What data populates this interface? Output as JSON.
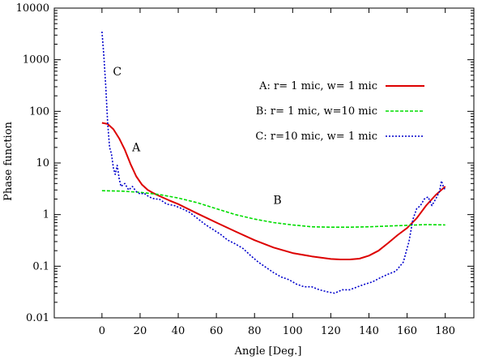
{
  "chart_data": {
    "type": "line",
    "title": "",
    "xlabel": "Angle [Deg.]",
    "ylabel": "Phase function",
    "xlim": [
      -25,
      195
    ],
    "ylim": [
      0.01,
      10000
    ],
    "yscale": "log",
    "grid": false,
    "legend_position": "top-right",
    "x_ticks": [
      0,
      20,
      40,
      60,
      80,
      100,
      120,
      140,
      160,
      180
    ],
    "y_ticks": [
      0.01,
      0.1,
      1,
      10,
      100,
      1000,
      10000
    ],
    "x_tick_labels": [
      "0",
      "20",
      "40",
      "60",
      "80",
      "100",
      "120",
      "140",
      "160",
      "180"
    ],
    "y_tick_labels": [
      "0.01",
      "0.1",
      "1",
      "10",
      "100",
      "1000",
      "10000"
    ],
    "series": [
      {
        "key": "A",
        "name": "A: r= 1 mic, w= 1 mic",
        "color": "#dd0000",
        "style": "solid",
        "x": [
          0,
          3,
          6,
          9,
          12,
          15,
          18,
          21,
          24,
          27,
          30,
          35,
          40,
          50,
          60,
          70,
          80,
          90,
          100,
          110,
          120,
          125,
          130,
          135,
          140,
          145,
          150,
          155,
          160,
          165,
          170,
          175,
          180
        ],
        "y": [
          60,
          57,
          45,
          30,
          18,
          9.5,
          5.5,
          3.8,
          3.0,
          2.6,
          2.3,
          1.9,
          1.6,
          1.05,
          0.7,
          0.47,
          0.32,
          0.23,
          0.18,
          0.155,
          0.138,
          0.135,
          0.135,
          0.14,
          0.16,
          0.2,
          0.28,
          0.4,
          0.55,
          0.85,
          1.5,
          2.4,
          3.5
        ]
      },
      {
        "key": "B",
        "name": "B: r= 1 mic, w=10 mic",
        "color": "#00dd00",
        "style": "dashed",
        "x": [
          0,
          10,
          20,
          30,
          40,
          50,
          60,
          70,
          80,
          90,
          100,
          110,
          120,
          130,
          140,
          150,
          160,
          170,
          180
        ],
        "y": [
          2.9,
          2.85,
          2.7,
          2.45,
          2.1,
          1.7,
          1.3,
          1.0,
          0.82,
          0.7,
          0.63,
          0.58,
          0.57,
          0.57,
          0.58,
          0.6,
          0.62,
          0.64,
          0.63
        ]
      },
      {
        "key": "C",
        "name": "C: r=10 mic, w= 1 mic",
        "color": "#0000cc",
        "style": "dotted",
        "x": [
          0,
          1,
          2,
          3,
          4,
          5,
          6,
          7,
          8,
          9,
          10,
          12,
          14,
          16,
          18,
          20,
          22,
          24,
          26,
          28,
          30,
          34,
          38,
          42,
          46,
          50,
          54,
          58,
          62,
          66,
          70,
          74,
          78,
          82,
          86,
          90,
          94,
          98,
          102,
          106,
          110,
          114,
          118,
          122,
          126,
          130,
          134,
          138,
          142,
          146,
          150,
          154,
          158,
          161,
          163,
          165,
          167,
          169,
          171,
          173,
          175,
          177,
          178,
          179,
          180
        ],
        "y": [
          3500,
          1200,
          300,
          60,
          20,
          15,
          8,
          6,
          9,
          5,
          3.5,
          4,
          3,
          3.5,
          2.8,
          2.5,
          2.6,
          2.3,
          2.1,
          2.0,
          2.0,
          1.6,
          1.5,
          1.3,
          1.1,
          0.85,
          0.65,
          0.52,
          0.42,
          0.32,
          0.27,
          0.22,
          0.16,
          0.12,
          0.095,
          0.075,
          0.062,
          0.055,
          0.045,
          0.04,
          0.04,
          0.035,
          0.032,
          0.03,
          0.035,
          0.035,
          0.04,
          0.045,
          0.05,
          0.06,
          0.07,
          0.08,
          0.12,
          0.3,
          0.8,
          1.3,
          1.5,
          2.0,
          2.2,
          1.5,
          2.0,
          2.8,
          4.5,
          3.5,
          3.0
        ]
      }
    ],
    "annotations": [
      {
        "text": "C",
        "x": 8,
        "y": 500
      },
      {
        "text": "A",
        "x": 18,
        "y": 17
      },
      {
        "text": "B",
        "x": 92,
        "y": 1.6
      }
    ]
  }
}
